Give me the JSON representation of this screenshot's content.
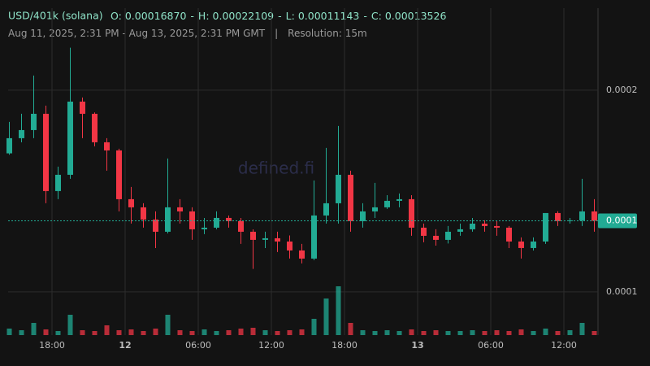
{
  "header": {
    "symbol": "USD/401k (solana)",
    "separator": "-",
    "ohlc": [
      {
        "key": "O:",
        "value": 0.0001687,
        "label": "0.00016870"
      },
      {
        "key": "H:",
        "value": 0.00022109,
        "label": "0.00022109"
      },
      {
        "key": "L:",
        "value": 0.00011143,
        "label": "0.00011143"
      },
      {
        "key": "C:",
        "value": 0.00013526,
        "label": "0.00013526"
      }
    ],
    "range": "Aug 11, 2025, 2:31 PM - Aug 13, 2025, 2:31 PM GMT",
    "divider": "|",
    "resolution": "Resolution: 15m",
    "watermark": "defined.fi"
  },
  "chart_data": {
    "type": "candlestick",
    "x": [
      14.5,
      15.5,
      16.5,
      17.5,
      18.5,
      19.5,
      20.5,
      21.5,
      22.5,
      23.5,
      24.5,
      25.5,
      26.5,
      27.5,
      28.5,
      29.5,
      30.5,
      31.5,
      32.5,
      33.5,
      34.5,
      35.5,
      36.5,
      37.5,
      38.5,
      39.5,
      40.5,
      41.5,
      42.5,
      43.5,
      44.5,
      45.5,
      46.5,
      47.5,
      48.5,
      49.5,
      50.5,
      51.5,
      52.5,
      53.5,
      54.5,
      55.5,
      56.5,
      57.5,
      58.5,
      59.5,
      60.5,
      61.5,
      62.5
    ],
    "open": [
      0.0001687,
      0.00017621,
      0.00018024,
      0.00018831,
      0.00015,
      0.00015807,
      0.00019436,
      0.00018831,
      0.00017419,
      0.00017016,
      0.00014597,
      0.00014194,
      0.00013589,
      0.00012984,
      0.00014194,
      0.00013992,
      0.00013105,
      0.00013186,
      0.00013669,
      0.00013508,
      0.00012984,
      0.00012581,
      0.00012661,
      0.000125,
      0.00012056,
      0.00011653,
      0.0001379,
      0.00014395,
      0.00015807,
      0.00013508,
      0.00013992,
      0.00014194,
      0.00014516,
      0.00014597,
      0.00013186,
      0.00012782,
      0.00012581,
      0.00012984,
      0.00013105,
      0.00013387,
      0.00013266,
      0.00013186,
      0.000125,
      0.00012177,
      0.000125,
      0.00013911,
      0.00013508,
      0.00013548,
      0.00013992
    ],
    "high": [
      0.00018428,
      0.00018831,
      0.00020726,
      0.00019234,
      0.0001621,
      0.00022109,
      0.00019637,
      0.000189,
      0.00017621,
      0.000171,
      0.00015202,
      0.00014395,
      0.00013992,
      0.00016613,
      0.00014597,
      0.00014194,
      0.00013669,
      0.00013992,
      0.0001379,
      0.00013669,
      0.000131,
      0.00012984,
      0.00012984,
      0.000128,
      0.00012379,
      0.00015524,
      0.00017137,
      0.00018226,
      0.00016008,
      0.00014395,
      0.00015403,
      0.00014798,
      0.00014879,
      0.00014798,
      0.00013387,
      0.00013105,
      0.00013266,
      0.00013387,
      0.00013669,
      0.0001355,
      0.00013508,
      0.00013266,
      0.00012702,
      0.00012702,
      0.00013911,
      0.00014,
      0.00013669,
      0.00015605,
      0.00014597
    ],
    "low": [
      0.000168,
      0.00017419,
      0.00017621,
      0.00014395,
      0.00014597,
      0.00015605,
      0.00017621,
      0.00017218,
      0.00016008,
      0.00013992,
      0.00013387,
      0.00013186,
      0.00012177,
      0.000129,
      0.00013387,
      0.00012581,
      0.00012863,
      0.00013105,
      0.00013186,
      0.00012379,
      0.00011143,
      0.00012177,
      0.00011976,
      0.00011653,
      0.00011411,
      0.00011573,
      0.00013387,
      0.00013387,
      0.00012984,
      0.00013186,
      0.00013669,
      0.00014113,
      0.00014194,
      0.00012782,
      0.0001246,
      0.00012298,
      0.000124,
      0.00012782,
      0.00012984,
      0.00012984,
      0.00012782,
      0.00012177,
      0.00011653,
      0.00012056,
      0.00012379,
      0.00013266,
      0.00013387,
      0.00013266,
      0.00012984
    ],
    "close": [
      0.00017621,
      0.00018024,
      0.00018831,
      0.00015,
      0.00015807,
      0.00019436,
      0.00018831,
      0.00017419,
      0.00017016,
      0.00014597,
      0.00014194,
      0.00013589,
      0.00012984,
      0.00014194,
      0.00013992,
      0.00013105,
      0.00013186,
      0.00013669,
      0.00013508,
      0.00012984,
      0.00012581,
      0.00012661,
      0.000125,
      0.00012056,
      0.00011653,
      0.0001379,
      0.00014395,
      0.00015807,
      0.00013508,
      0.00013992,
      0.00014194,
      0.00014516,
      0.00014597,
      0.00013186,
      0.00012782,
      0.00012581,
      0.00012984,
      0.00013105,
      0.00013387,
      0.00013266,
      0.00013186,
      0.000125,
      0.00012177,
      0.000125,
      0.00013911,
      0.00013508,
      0.00013548,
      0.00013992,
      0.00013526
    ],
    "volume": [
      8,
      6,
      15,
      7,
      5,
      25,
      6,
      5,
      12,
      6,
      7,
      5,
      8,
      25,
      6,
      5,
      7,
      5,
      6,
      8,
      9,
      6,
      5,
      6,
      7,
      20,
      45,
      60,
      15,
      6,
      5,
      6,
      5,
      7,
      5,
      6,
      5,
      5,
      6,
      5,
      6,
      5,
      7,
      5,
      8,
      5,
      6,
      15,
      5
    ],
    "colors": {
      "up": "#22ab94",
      "down": "#f23645"
    },
    "xlim": [
      14.4,
      62.6
    ],
    "xticks": [
      {
        "value": 18,
        "label": "18:00"
      },
      {
        "value": 24,
        "label": "12"
      },
      {
        "value": 30,
        "label": "06:00"
      },
      {
        "value": 36,
        "label": "12:00"
      },
      {
        "value": 42,
        "label": "18:00"
      },
      {
        "value": 48,
        "label": "13"
      },
      {
        "value": 54,
        "label": "06:00"
      },
      {
        "value": 60,
        "label": "12:00"
      }
    ],
    "ylim": [
      7.86e-05,
      0.0002407
    ],
    "yticks": [
      0.0002,
      0.0001
    ],
    "last_price": {
      "value": 0.00013526,
      "label": "0.0001"
    },
    "grid": true
  }
}
